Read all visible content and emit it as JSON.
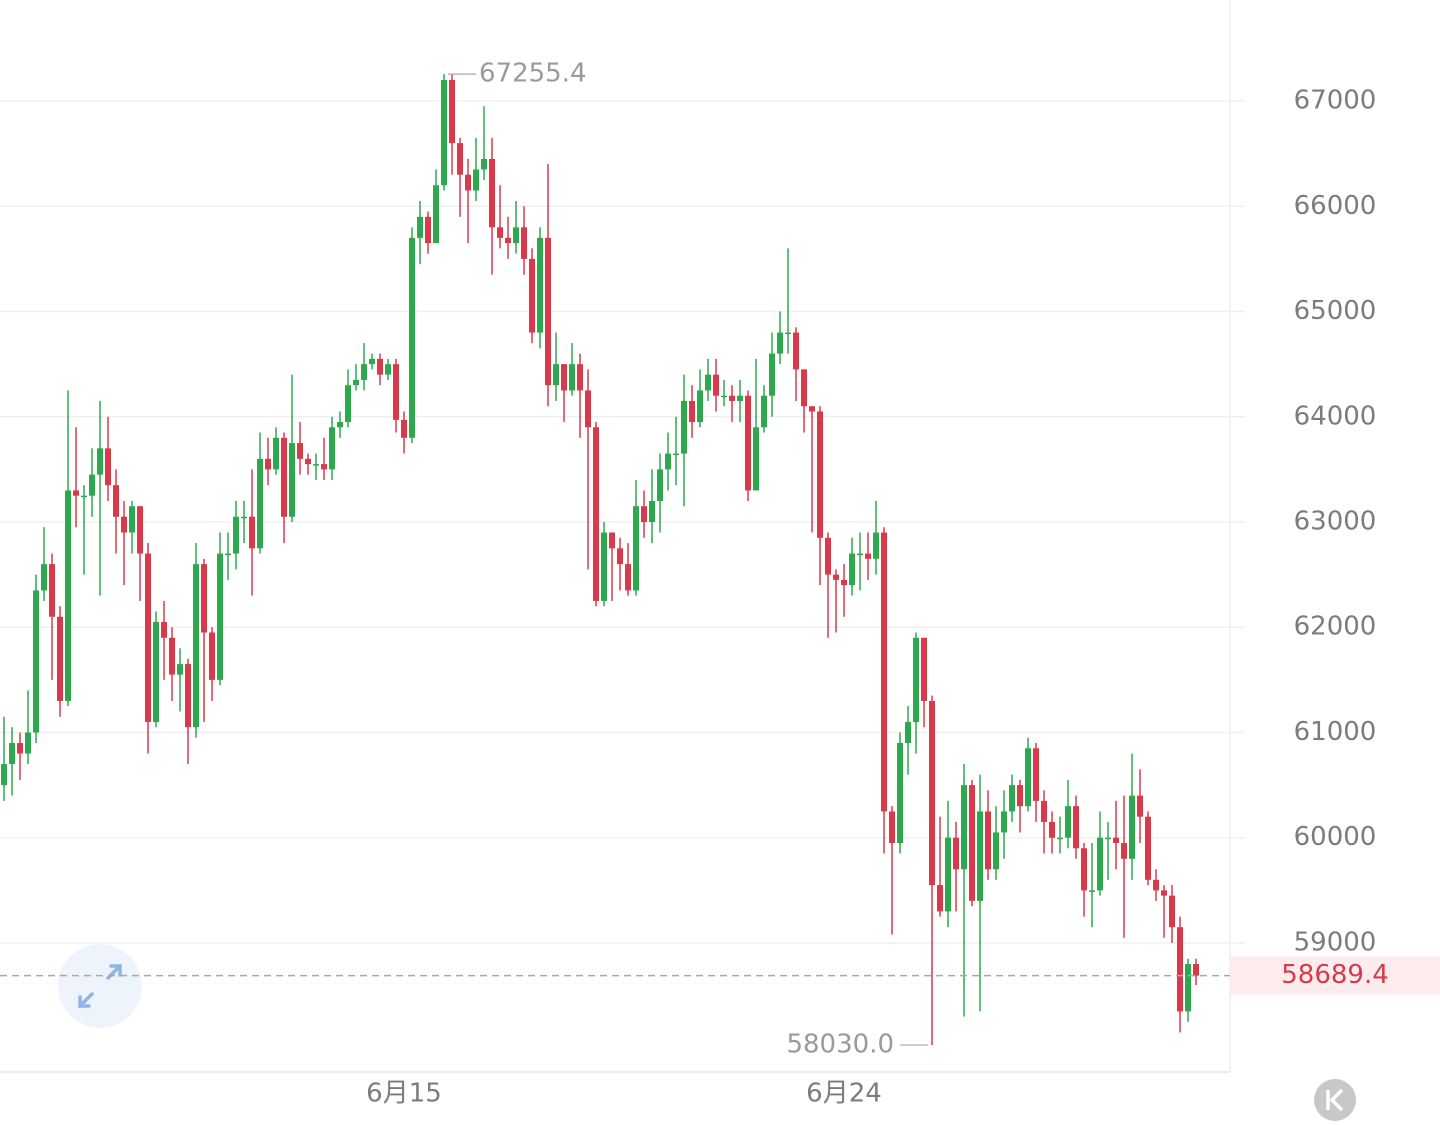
{
  "chart_data": {
    "type": "candlestick",
    "up_color": "#2ea84d",
    "down_color": "#d83a4b",
    "ylim": [
      57774,
      67960
    ],
    "yticks": [
      59000,
      60000,
      61000,
      62000,
      63000,
      64000,
      65000,
      66000,
      67000
    ],
    "grid": true,
    "low_label": "58030.0",
    "categories": [
      null,
      null,
      null,
      null,
      null,
      null,
      null,
      null,
      null,
      null,
      null,
      null,
      null,
      null,
      null,
      null,
      null,
      null,
      null,
      null,
      null,
      null,
      null,
      null,
      null,
      null,
      null,
      null,
      null,
      null,
      null,
      null,
      null,
      null,
      null,
      null,
      null,
      null,
      null,
      null,
      null,
      null,
      null,
      null,
      null,
      null,
      null,
      null,
      null,
      null,
      "6月15",
      null,
      null,
      null,
      null,
      null,
      null,
      null,
      null,
      null,
      null,
      null,
      null,
      null,
      null,
      null,
      null,
      null,
      null,
      null,
      null,
      null,
      null,
      null,
      null,
      null,
      null,
      null,
      null,
      null,
      null,
      null,
      null,
      null,
      null,
      null,
      null,
      null,
      null,
      null,
      null,
      null,
      null,
      null,
      null,
      null,
      null,
      null,
      null,
      null,
      null,
      null,
      null,
      null,
      null,
      "6月24",
      null,
      null,
      null,
      null,
      null,
      null,
      null,
      null,
      null,
      null,
      null,
      null,
      null,
      null,
      null,
      null,
      null,
      null,
      null,
      null,
      null,
      null,
      null,
      null,
      null,
      null,
      null,
      null,
      null,
      null,
      null,
      null,
      null,
      null,
      null,
      null,
      null,
      null,
      null,
      null,
      null,
      null,
      null,
      null
    ],
    "open": [
      60500,
      60700,
      60900,
      60800,
      61000,
      62350,
      62600,
      62100,
      61300,
      63300,
      63250,
      63250,
      63450,
      63700,
      63350,
      63050,
      62900,
      63150,
      62700,
      61100,
      62050,
      61900,
      61550,
      61650,
      61050,
      62600,
      61950,
      61500,
      62700,
      62700,
      63050,
      63050,
      62750,
      63600,
      63500,
      63800,
      63050,
      63750,
      63600,
      63550,
      63550,
      63500,
      63900,
      63950,
      64300,
      64350,
      64500,
      64550,
      64400,
      64500,
      63970,
      63800,
      65700,
      65900,
      65650,
      66200,
      67200,
      66600,
      66300,
      66150,
      66350,
      66450,
      65800,
      65700,
      65650,
      65800,
      65500,
      64800,
      65700,
      64300,
      64500,
      64250,
      64500,
      64250,
      63900,
      62250,
      62900,
      62750,
      62600,
      62350,
      63150,
      63000,
      63200,
      63500,
      63650,
      63650,
      64150,
      63950,
      64250,
      64400,
      64200,
      64200,
      64150,
      64200,
      63300,
      63900,
      64200,
      64600,
      64800,
      64800,
      64450,
      64100,
      64050,
      62850,
      62500,
      62450,
      62400,
      62700,
      62700,
      62650,
      62900,
      60250,
      59950,
      60900,
      61100,
      61900,
      61300,
      59550,
      59300,
      60000,
      59700,
      60500,
      59400,
      60250,
      59700,
      60050,
      60250,
      60500,
      60300,
      60850,
      60350,
      60150,
      60000,
      60000,
      60300,
      59900,
      59500,
      59500,
      60000,
      60000,
      59950,
      59800,
      60400,
      60200,
      59600,
      59500,
      59450,
      59150,
      58350,
      58800
    ],
    "high": [
      61150,
      61050,
      61000,
      61400,
      62500,
      62950,
      62700,
      62200,
      64250,
      63900,
      63350,
      63700,
      64150,
      64000,
      63500,
      63200,
      63200,
      63150,
      62800,
      62150,
      62250,
      62000,
      61800,
      61700,
      62800,
      62650,
      62000,
      62900,
      62900,
      63200,
      63200,
      63500,
      63850,
      63800,
      63900,
      63850,
      64400,
      63950,
      63650,
      63650,
      63800,
      64000,
      64050,
      64450,
      64500,
      64700,
      64600,
      64600,
      64550,
      64550,
      64050,
      65800,
      66050,
      65950,
      66350,
      67255.4,
      67250,
      66650,
      66450,
      66650,
      66950,
      66650,
      66200,
      65900,
      66050,
      66000,
      65600,
      65800,
      66400,
      64800,
      64500,
      64700,
      64600,
      64450,
      63950,
      63000,
      62900,
      62850,
      62800,
      63400,
      63300,
      63500,
      63650,
      63850,
      64000,
      64400,
      64300,
      64450,
      64550,
      64550,
      64350,
      64300,
      64350,
      64250,
      64550,
      64300,
      64800,
      65000,
      65600,
      64850,
      64450,
      64100,
      64100,
      62900,
      62550,
      62600,
      62850,
      62900,
      62900,
      63200,
      62950,
      60300,
      61000,
      61250,
      61950,
      61900,
      61350,
      60200,
      60350,
      60150,
      60700,
      60550,
      60600,
      60450,
      60300,
      60450,
      60600,
      60550,
      60950,
      60900,
      60450,
      60250,
      60200,
      60550,
      60400,
      59950,
      59950,
      60250,
      60150,
      60350,
      60400,
      60800,
      60650,
      60250,
      59700,
      59550,
      59550,
      59250,
      58850,
      58850
    ],
    "low": [
      60350,
      60400,
      60550,
      60700,
      60900,
      62250,
      61500,
      61150,
      61250,
      62950,
      62500,
      63050,
      62300,
      63200,
      62700,
      62400,
      62700,
      62250,
      60800,
      61050,
      61500,
      61300,
      61200,
      60700,
      60950,
      61100,
      61300,
      61450,
      62450,
      62550,
      62800,
      62300,
      62700,
      63350,
      63450,
      62800,
      63000,
      63450,
      63450,
      63400,
      63400,
      63400,
      63800,
      63900,
      64250,
      64250,
      64450,
      64300,
      64350,
      63850,
      63650,
      63750,
      65450,
      65550,
      65650,
      66150,
      66300,
      65900,
      65650,
      66050,
      66250,
      65350,
      65600,
      65500,
      65550,
      65350,
      64700,
      64650,
      64100,
      64150,
      63950,
      64200,
      63800,
      62550,
      62200,
      62200,
      62250,
      62350,
      62300,
      62300,
      62850,
      62800,
      62900,
      63300,
      63350,
      63150,
      63800,
      63900,
      64150,
      64050,
      64100,
      63950,
      63950,
      63200,
      63300,
      63850,
      64000,
      64500,
      64600,
      64150,
      63850,
      62900,
      62400,
      61900,
      61950,
      62100,
      62300,
      62350,
      62450,
      62500,
      59850,
      59080,
      59850,
      60600,
      60800,
      61050,
      58030,
      59250,
      59150,
      59300,
      58300,
      59350,
      58350,
      59600,
      59600,
      59800,
      60150,
      60050,
      60250,
      60150,
      59850,
      59850,
      59850,
      59900,
      59800,
      59250,
      59150,
      59450,
      59600,
      59700,
      59050,
      59600,
      59950,
      59550,
      59400,
      59050,
      59000,
      58150,
      58250,
      58600
    ],
    "close": [
      60700,
      60900,
      60800,
      61000,
      62350,
      62600,
      62100,
      61300,
      63300,
      63250,
      63250,
      63450,
      63700,
      63350,
      63050,
      62900,
      63150,
      62700,
      61100,
      62050,
      61900,
      61550,
      61650,
      61050,
      62600,
      61950,
      61500,
      62700,
      62700,
      63050,
      63050,
      62750,
      63600,
      63500,
      63800,
      63050,
      63750,
      63600,
      63550,
      63550,
      63500,
      63900,
      63950,
      64300,
      64350,
      64500,
      64550,
      64400,
      64500,
      63970,
      63800,
      65700,
      65900,
      65650,
      66200,
      67200,
      66600,
      66300,
      66150,
      66350,
      66450,
      65800,
      65700,
      65650,
      65800,
      65500,
      64800,
      65700,
      64300,
      64500,
      64250,
      64500,
      64250,
      63900,
      62250,
      62900,
      62750,
      62600,
      62350,
      63150,
      63000,
      63200,
      63500,
      63650,
      63650,
      64150,
      63950,
      64250,
      64400,
      64200,
      64200,
      64150,
      64200,
      63300,
      63900,
      64200,
      64600,
      64800,
      64800,
      64450,
      64100,
      64050,
      62850,
      62500,
      62450,
      62400,
      62700,
      62700,
      62650,
      62900,
      60250,
      59950,
      60900,
      61100,
      61900,
      61300,
      59550,
      59300,
      60000,
      59700,
      60500,
      59400,
      60250,
      59700,
      60050,
      60250,
      60500,
      60300,
      60850,
      60350,
      60150,
      60000,
      60000,
      60300,
      59900,
      59500,
      59500,
      60000,
      60000,
      59950,
      59800,
      60400,
      60200,
      59600,
      59500,
      59450,
      59150,
      58350,
      58800,
      58689.4
    ]
  }
}
